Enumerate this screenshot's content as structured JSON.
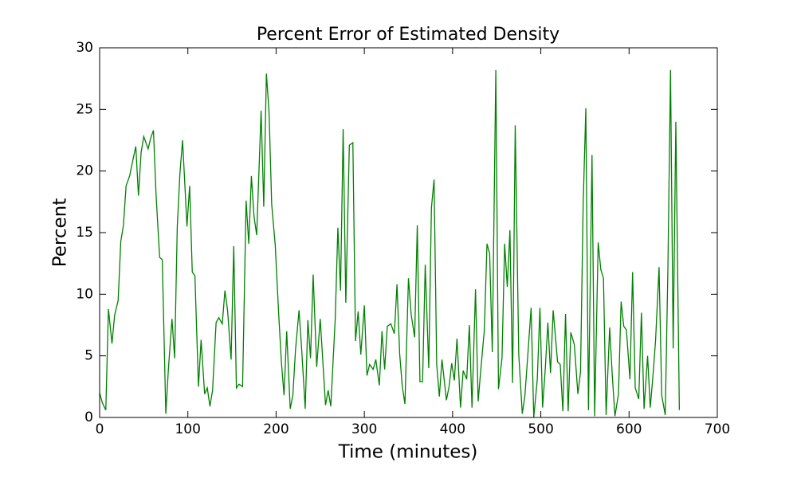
{
  "chart_data": {
    "type": "line",
    "title": "Percent Error of Estimated Density",
    "x_label": "Time (minutes)",
    "y_label": "Percent",
    "xlim": [
      0,
      700
    ],
    "ylim": [
      0,
      30
    ],
    "xticks": [
      0,
      100,
      200,
      300,
      400,
      500,
      600,
      700
    ],
    "yticks": [
      0,
      5,
      10,
      15,
      20,
      25,
      30
    ],
    "grid": false,
    "series": [
      {
        "color": "#008000",
        "x": [
          0,
          3,
          7,
          10,
          14,
          17,
          21,
          24,
          27,
          30,
          34,
          38,
          41,
          44,
          47,
          50,
          55,
          58,
          61,
          64,
          68,
          71,
          75,
          78,
          82,
          85,
          88,
          91,
          94,
          99,
          102,
          105,
          108,
          112,
          115,
          119,
          122,
          125,
          128,
          132,
          135,
          139,
          142,
          145,
          149,
          152,
          155,
          158,
          162,
          166,
          169,
          172,
          175,
          178,
          183,
          186,
          189,
          192,
          195,
          199,
          203,
          206,
          209,
          212,
          216,
          219,
          222,
          226,
          229,
          233,
          236,
          239,
          242,
          246,
          250,
          253,
          256,
          259,
          262,
          267,
          270,
          273,
          276,
          279,
          283,
          287,
          290,
          293,
          296,
          300,
          303,
          306,
          310,
          313,
          317,
          320,
          323,
          326,
          330,
          334,
          337,
          340,
          343,
          346,
          350,
          353,
          357,
          360,
          363,
          366,
          369,
          373,
          376,
          379,
          382,
          385,
          388,
          393,
          396,
          399,
          402,
          405,
          409,
          412,
          416,
          419,
          422,
          426,
          429,
          432,
          436,
          439,
          442,
          445,
          449,
          452,
          456,
          459,
          462,
          465,
          468,
          471,
          475,
          479,
          482,
          485,
          489,
          492,
          496,
          499,
          502,
          505,
          508,
          511,
          514,
          519,
          522,
          525,
          528,
          531,
          534,
          538,
          542,
          545,
          548,
          551,
          554,
          558,
          561,
          565,
          568,
          571,
          574,
          578,
          581,
          584,
          588,
          591,
          594,
          597,
          601,
          604,
          607,
          611,
          614,
          617,
          621,
          624,
          627,
          630,
          634,
          637,
          641,
          644,
          647,
          650,
          653,
          657
        ],
        "values": [
          2,
          1.2,
          0.6,
          8.8,
          6,
          8.3,
          9.5,
          14.3,
          15.6,
          18.8,
          19.6,
          21,
          22,
          18,
          21.5,
          22.8,
          21.8,
          22.7,
          23.3,
          18,
          13,
          12.8,
          0.3,
          4,
          8,
          4.8,
          15.5,
          19.8,
          22.5,
          15.5,
          18.8,
          11.8,
          11.5,
          2.5,
          6.3,
          1.9,
          2.4,
          0.9,
          2.2,
          7.7,
          8.1,
          7.6,
          10.3,
          8.7,
          4.7,
          13.9,
          2.4,
          2.7,
          2.5,
          17.6,
          14.1,
          19.6,
          16.3,
          14.8,
          24.9,
          17.1,
          27.9,
          24.8,
          17.3,
          14,
          8.3,
          4.5,
          1.8,
          7,
          0.7,
          1.8,
          5.5,
          8.7,
          5.5,
          0.7,
          7.9,
          4.8,
          11.6,
          4.1,
          8,
          4.5,
          1,
          2.2,
          0.9,
          8,
          15.4,
          10.3,
          23.4,
          9.3,
          22.1,
          22.3,
          6.2,
          8.6,
          5.1,
          9.1,
          3.4,
          4.3,
          3.9,
          4.7,
          2.6,
          7,
          3.9,
          7.4,
          7.6,
          6.8,
          10.8,
          5.2,
          2.5,
          1.1,
          11.3,
          8.4,
          6.5,
          15.6,
          2.9,
          2.9,
          12.4,
          4,
          17,
          19.3,
          4.3,
          1.7,
          4.7,
          1.4,
          2.5,
          4.4,
          3,
          6.4,
          0.8,
          3.8,
          3.1,
          7.5,
          0.8,
          10.4,
          1.3,
          3.9,
          7.1,
          14.1,
          13.3,
          5.3,
          28.2,
          2.3,
          4.8,
          14.1,
          10.6,
          15.2,
          2.8,
          23.7,
          5.1,
          0.3,
          1.8,
          4.8,
          8.9,
          0,
          3.1,
          8.9,
          0.8,
          3.9,
          7.7,
          3.6,
          8.7,
          4.5,
          4.3,
          0.5,
          8.4,
          0.5,
          6.9,
          5.9,
          1.9,
          3.7,
          17.3,
          25.1,
          0.6,
          21.3,
          0.1,
          14.2,
          12,
          11.3,
          0.2,
          7.3,
          3.4,
          0.1,
          1.9,
          9.4,
          7.4,
          7.1,
          3.1,
          11.8,
          2.4,
          1.5,
          8.5,
          0.7,
          5,
          0.8,
          3.3,
          6.2,
          12.2,
          1.8,
          0.2,
          12,
          28.2,
          5.6,
          24,
          0.6
        ]
      }
    ]
  }
}
